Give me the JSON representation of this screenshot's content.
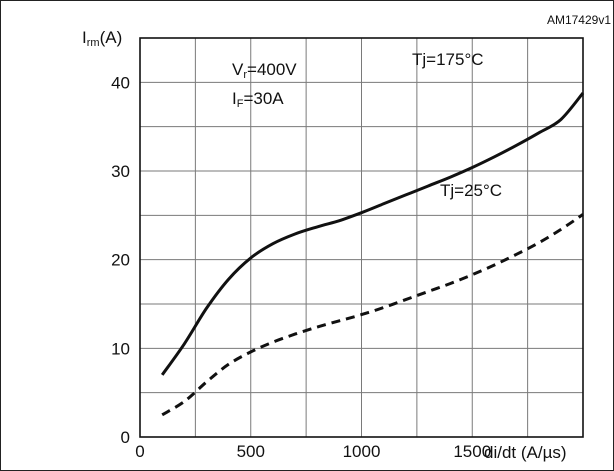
{
  "chart_data": {
    "type": "line",
    "id_label": "AM17429v1",
    "y_axis": {
      "label_main": "I",
      "label_sub": "rm",
      "label_unit": "(A)",
      "ylim": [
        0,
        45
      ],
      "ticks": [
        0,
        10,
        20,
        30,
        40
      ]
    },
    "x_axis": {
      "label": "di/dt (A/µs)",
      "xlim": [
        0,
        2000
      ],
      "ticks": [
        0,
        500,
        1000,
        1500
      ]
    },
    "grid": true,
    "conditions": [
      {
        "main": "V",
        "sub": "r",
        "rest": "=400V"
      },
      {
        "main": "I",
        "sub": "F",
        "rest": "=30A"
      }
    ],
    "series": [
      {
        "name": "Tj=175°C",
        "style": "solid",
        "x": [
          100,
          200,
          300,
          400,
          500,
          600,
          700,
          800,
          900,
          1000,
          1100,
          1200,
          1300,
          1400,
          1500,
          1600,
          1700,
          1800,
          1900,
          2000
        ],
        "y": [
          7.0,
          10.5,
          14.5,
          17.8,
          20.2,
          21.8,
          22.9,
          23.7,
          24.4,
          25.3,
          26.3,
          27.3,
          28.3,
          29.3,
          30.4,
          31.6,
          32.9,
          34.3,
          35.8,
          38.8
        ]
      },
      {
        "name": "Tj=25°C",
        "style": "dashed",
        "x": [
          100,
          200,
          300,
          400,
          500,
          600,
          700,
          800,
          900,
          1000,
          1100,
          1200,
          1300,
          1400,
          1500,
          1600,
          1700,
          1800,
          1900,
          2000
        ],
        "y": [
          2.5,
          4.0,
          6.2,
          8.2,
          9.6,
          10.7,
          11.6,
          12.4,
          13.1,
          13.8,
          14.6,
          15.5,
          16.4,
          17.3,
          18.3,
          19.4,
          20.6,
          21.9,
          23.4,
          25.1
        ]
      }
    ]
  }
}
